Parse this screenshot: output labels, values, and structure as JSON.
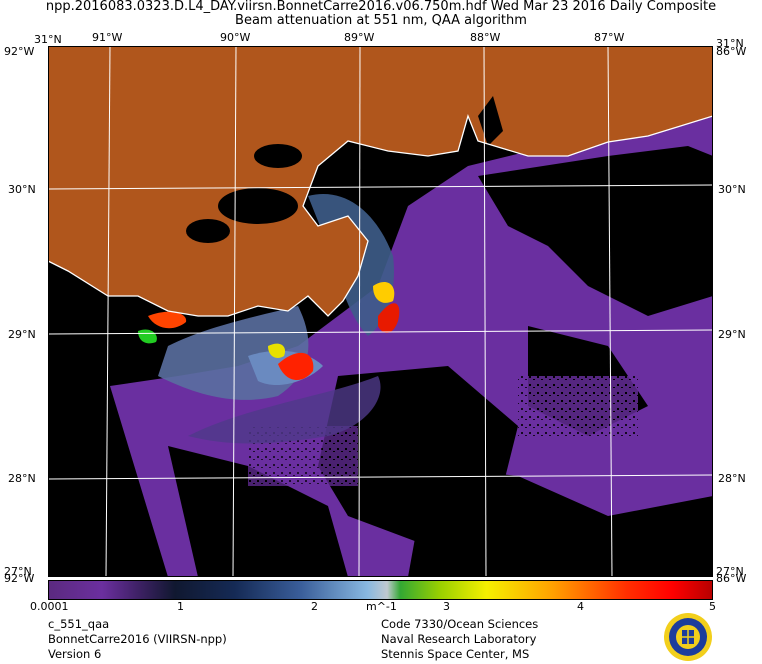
{
  "header": {
    "line1": "npp.2016083.0323.D.L4_DAY.viirsn.BonnetCarre2016.v06.750m.hdf   Wed Mar 23 2016 Daily Composite",
    "line2": "Beam attenuation at 551 nm, QAA algorithm"
  },
  "map": {
    "lon_labels": [
      "91°W",
      "90°W",
      "89°W",
      "88°W",
      "87°W"
    ],
    "lat_labels": [
      "31°N",
      "30°N",
      "29°N",
      "28°N",
      "27°N"
    ],
    "corner_top_left": "31°N",
    "corner_top_left_lon": "92°W",
    "corner_top_right": "31°N",
    "corner_top_right_lon": "86°W",
    "corner_bottom_left": "27°N",
    "corner_bottom_left_lon": "92°W",
    "corner_bottom_right": "27°N",
    "corner_bottom_right_lon": "86°W",
    "colors": {
      "land": "#b0561c",
      "no_data": "#000000",
      "water_low": "#6a2fa0",
      "grid": "#ffffff"
    }
  },
  "colorbar": {
    "ticks": [
      "0.0001",
      "1",
      "2",
      "3",
      "4",
      "5"
    ],
    "unit": "m^-1"
  },
  "footer": {
    "left": [
      "c_551_qaa",
      "BonnetCarre2016 (VIIRSN-npp)",
      "Version 6"
    ],
    "right": [
      "Code 7330/Ocean Sciences",
      "Naval Research Laboratory",
      "Stennis Space Center, MS"
    ]
  }
}
